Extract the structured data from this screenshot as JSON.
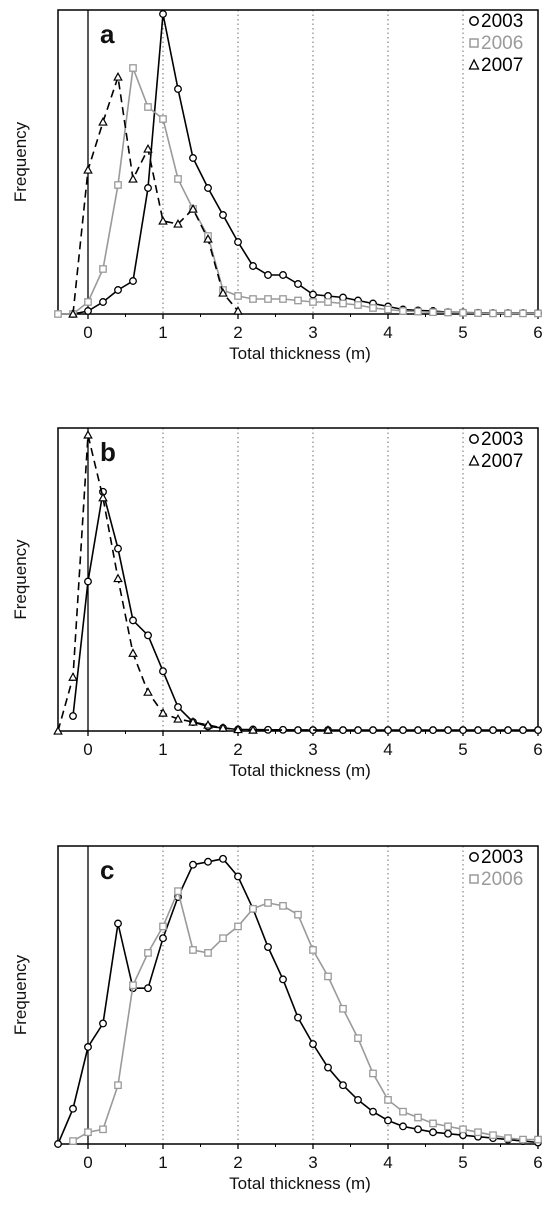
{
  "colors": {
    "black": "#000000",
    "gray": "#9a9a9a",
    "grid": "#6e6e6e"
  },
  "chart_data": [
    {
      "type": "line",
      "panel_label": "a",
      "xlabel": "Total thickness (m)",
      "ylabel": "Frequency",
      "xlim": [
        -0.4,
        6.0
      ],
      "ylim": [
        0,
        1.0
      ],
      "xticks": [
        "0",
        "1",
        "2",
        "3",
        "4",
        "5",
        "6"
      ],
      "y_ticks_shown": false,
      "grid": "vertical dotted at 1-5",
      "legend_position": "top-right",
      "series": [
        {
          "name": "2003",
          "color": "#000000",
          "marker": "circle",
          "dash": "solid",
          "x": [
            -0.2,
            0,
            0.2,
            0.4,
            0.6,
            0.8,
            1.0,
            1.2,
            1.4,
            1.6,
            1.8,
            2.0,
            2.2,
            2.4,
            2.6,
            2.8,
            3.0,
            3.2,
            3.4,
            3.6,
            3.8,
            4.0,
            4.2,
            4.4,
            4.6,
            4.8,
            5.0,
            5.2,
            5.4,
            5.6,
            5.8,
            6.0
          ],
          "y": [
            0.0,
            0.01,
            0.04,
            0.08,
            0.11,
            0.42,
            1.0,
            0.75,
            0.52,
            0.42,
            0.33,
            0.24,
            0.16,
            0.13,
            0.13,
            0.1,
            0.065,
            0.06,
            0.055,
            0.045,
            0.035,
            0.025,
            0.015,
            0.012,
            0.01,
            0.006,
            0.005,
            0.004,
            0.003,
            0.003,
            0.003,
            0.003
          ]
        },
        {
          "name": "2006",
          "color": "#9a9a9a",
          "marker": "square",
          "dash": "solid",
          "x": [
            -0.4,
            -0.2,
            0,
            0.2,
            0.4,
            0.6,
            0.8,
            1.0,
            1.2,
            1.4,
            1.6,
            1.8,
            2.0,
            2.2,
            2.4,
            2.6,
            2.8,
            3.0,
            3.2,
            3.4,
            3.6,
            3.8,
            4.0,
            4.2,
            4.4,
            4.6,
            4.8,
            5.0,
            5.2,
            5.4,
            5.6,
            5.8,
            6.0
          ],
          "y": [
            0.0,
            0.0,
            0.04,
            0.15,
            0.43,
            0.82,
            0.69,
            0.65,
            0.45,
            0.35,
            0.26,
            0.08,
            0.06,
            0.05,
            0.05,
            0.05,
            0.045,
            0.04,
            0.04,
            0.035,
            0.03,
            0.02,
            0.015,
            0.01,
            0.008,
            0.006,
            0.005,
            0.004,
            0.003,
            0.002,
            0.002,
            0.002,
            0.002
          ]
        },
        {
          "name": "2007",
          "color": "#000000",
          "marker": "triangle",
          "dash": "dashed",
          "x": [
            -0.2,
            0,
            0.2,
            0.4,
            0.6,
            0.8,
            1.0,
            1.2,
            1.4,
            1.6,
            1.8,
            2.0
          ],
          "y": [
            0.0,
            0.48,
            0.64,
            0.79,
            0.45,
            0.55,
            0.31,
            0.3,
            0.35,
            0.25,
            0.07,
            0.01
          ]
        }
      ]
    },
    {
      "type": "line",
      "panel_label": "b",
      "xlabel": "Total thickness (m)",
      "ylabel": "Frequency",
      "xlim": [
        -0.4,
        6.0
      ],
      "ylim": [
        0,
        1.0
      ],
      "xticks": [
        "0",
        "1",
        "2",
        "3",
        "4",
        "5",
        "6"
      ],
      "y_ticks_shown": false,
      "grid": "vertical dotted at 1-5",
      "legend_position": "top-right",
      "series": [
        {
          "name": "2003",
          "color": "#000000",
          "marker": "circle",
          "dash": "solid",
          "x": [
            -0.2,
            0,
            0.2,
            0.4,
            0.6,
            0.8,
            1.0,
            1.2,
            1.4,
            1.6,
            1.8,
            2.0,
            2.2,
            2.4,
            2.6,
            2.8,
            3.0,
            3.2,
            3.4,
            3.6,
            3.8,
            4.0,
            4.2,
            4.4,
            4.6,
            4.8,
            5.0,
            5.2,
            5.4,
            5.6,
            5.8,
            6.0
          ],
          "y": [
            0.05,
            0.5,
            0.8,
            0.61,
            0.37,
            0.32,
            0.2,
            0.08,
            0.03,
            0.015,
            0.01,
            0.005,
            0.005,
            0.004,
            0.004,
            0.003,
            0.003,
            0.003,
            0.003,
            0.003,
            0.003,
            0.003,
            0.003,
            0.003,
            0.003,
            0.003,
            0.003,
            0.003,
            0.003,
            0.003,
            0.003,
            0.003
          ]
        },
        {
          "name": "2007",
          "color": "#000000",
          "marker": "triangle",
          "dash": "dashed",
          "x": [
            -0.4,
            -0.2,
            0,
            0.2,
            0.4,
            0.6,
            0.8,
            1.0,
            1.2,
            1.4,
            1.6,
            1.8,
            2.0,
            2.2,
            3.2
          ],
          "y": [
            0.0,
            0.18,
            0.99,
            0.78,
            0.51,
            0.26,
            0.13,
            0.06,
            0.04,
            0.03,
            0.02,
            0.01,
            0.005,
            0.003,
            0.003
          ]
        }
      ]
    },
    {
      "type": "line",
      "panel_label": "c",
      "xlabel": "Total thickness (m)",
      "ylabel": "Frequency",
      "xlim": [
        -0.4,
        6.0
      ],
      "ylim": [
        0,
        1.0
      ],
      "xticks": [
        "0",
        "1",
        "2",
        "3",
        "4",
        "5",
        "6"
      ],
      "y_ticks_shown": false,
      "grid": "vertical dotted at 1-5",
      "legend_position": "top-right",
      "series": [
        {
          "name": "2003",
          "color": "#000000",
          "marker": "circle",
          "dash": "solid",
          "x": [
            -0.4,
            -0.2,
            0,
            0.2,
            0.4,
            0.6,
            0.8,
            1.0,
            1.2,
            1.4,
            1.6,
            1.8,
            2.0,
            2.2,
            2.4,
            2.6,
            2.8,
            3.0,
            3.2,
            3.4,
            3.6,
            3.8,
            4.0,
            4.2,
            4.4,
            4.6,
            4.8,
            5.0,
            5.2,
            5.4,
            5.6,
            5.8,
            6.0
          ],
          "y": [
            0.0,
            0.12,
            0.33,
            0.41,
            0.75,
            0.53,
            0.53,
            0.7,
            0.84,
            0.95,
            0.96,
            0.97,
            0.91,
            0.8,
            0.67,
            0.56,
            0.43,
            0.34,
            0.26,
            0.2,
            0.15,
            0.11,
            0.08,
            0.06,
            0.05,
            0.04,
            0.035,
            0.03,
            0.025,
            0.02,
            0.015,
            0.01,
            0.005
          ]
        },
        {
          "name": "2006",
          "color": "#9a9a9a",
          "marker": "square",
          "dash": "solid",
          "x": [
            -0.2,
            0,
            0.2,
            0.4,
            0.6,
            0.8,
            1.0,
            1.2,
            1.4,
            1.6,
            1.8,
            2.0,
            2.2,
            2.4,
            2.6,
            2.8,
            3.0,
            3.2,
            3.4,
            3.6,
            3.8,
            4.0,
            4.2,
            4.4,
            4.6,
            4.8,
            5.0,
            5.2,
            5.4,
            5.6,
            5.8,
            6.0
          ],
          "y": [
            0.01,
            0.04,
            0.05,
            0.2,
            0.54,
            0.65,
            0.74,
            0.86,
            0.66,
            0.65,
            0.7,
            0.74,
            0.8,
            0.82,
            0.81,
            0.78,
            0.66,
            0.57,
            0.46,
            0.36,
            0.24,
            0.15,
            0.11,
            0.09,
            0.07,
            0.06,
            0.05,
            0.04,
            0.03,
            0.02,
            0.015,
            0.015
          ]
        }
      ]
    }
  ]
}
